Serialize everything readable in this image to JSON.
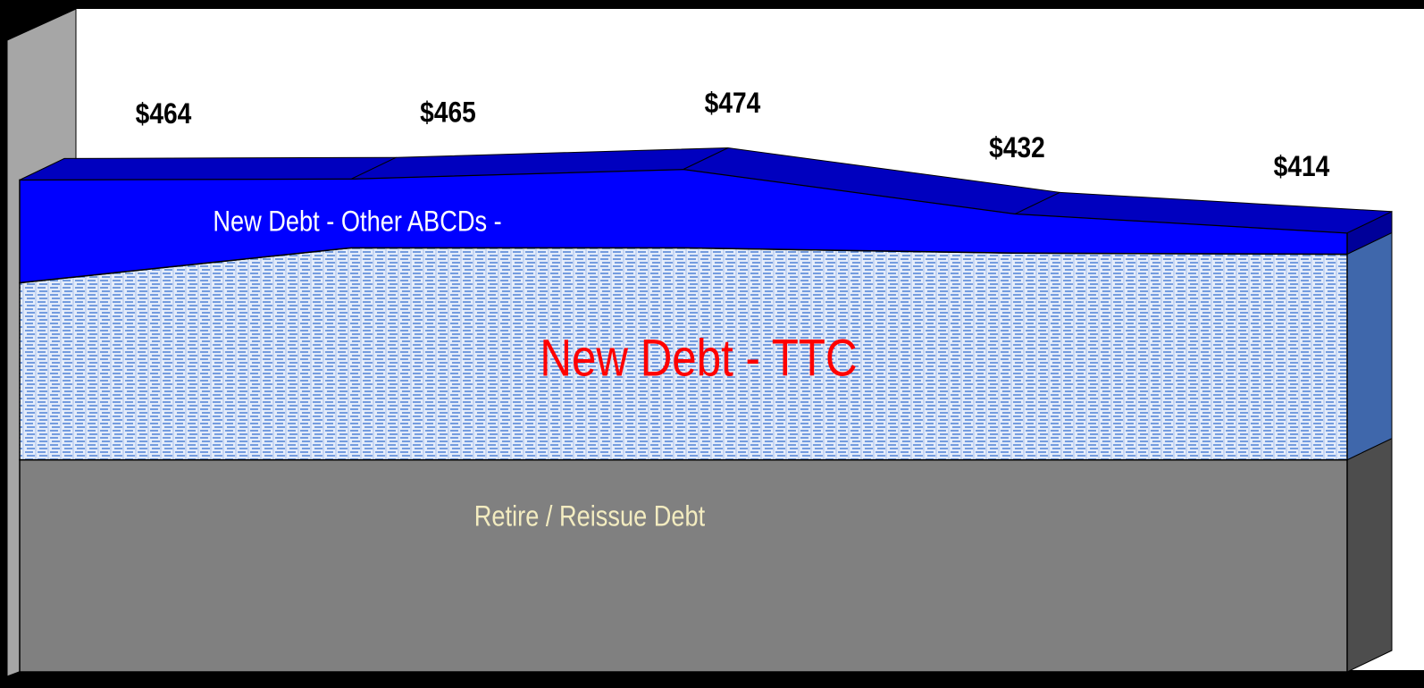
{
  "chart_data": {
    "type": "area",
    "stacked": true,
    "categories": [
      null,
      null,
      null,
      null,
      null
    ],
    "series": [
      {
        "name": "Retire / Reissue Debt",
        "color": "#808080",
        "label_color": "#f3ecc0",
        "values": [
          200,
          200,
          200,
          200,
          200
        ]
      },
      {
        "name": "New Debt - TTC",
        "color": "#4f81d6",
        "pattern": "dashes",
        "label_color": "#ff0000",
        "values": [
          167,
          200,
          200,
          195,
          194
        ]
      },
      {
        "name": "New Debt - Other ABCDs -",
        "color": "#0000ff",
        "label_color": "#ffffff",
        "values": [
          97,
          65,
          74,
          37,
          20
        ]
      }
    ],
    "totals": [
      464,
      465,
      474,
      432,
      414
    ],
    "total_labels": [
      "$464",
      "$465",
      "$474",
      "$432",
      "$414"
    ],
    "ylim": [
      0,
      600
    ]
  }
}
